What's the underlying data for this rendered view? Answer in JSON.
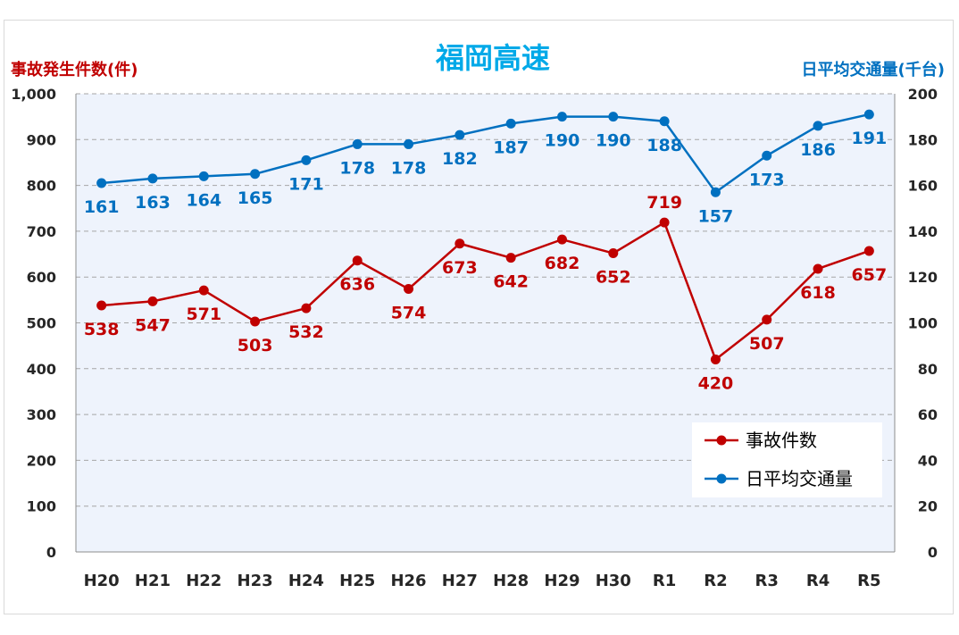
{
  "chart_data": {
    "type": "line",
    "title": "福岡高速",
    "y_left_label": "事故発生件数(件)",
    "y_right_label": "日平均交通量(千台)",
    "categories": [
      "H20",
      "H21",
      "H22",
      "H23",
      "H24",
      "H25",
      "H26",
      "H27",
      "H28",
      "H29",
      "H30",
      "R1",
      "R2",
      "R3",
      "R4",
      "R5"
    ],
    "y_left_lim": [
      0,
      1000
    ],
    "y_left_ticks": [
      "0",
      "100",
      "200",
      "300",
      "400",
      "500",
      "600",
      "700",
      "800",
      "900",
      "1,000"
    ],
    "y_right_lim": [
      0,
      200
    ],
    "y_right_ticks": [
      "0",
      "20",
      "40",
      "60",
      "80",
      "100",
      "120",
      "140",
      "160",
      "180",
      "200"
    ],
    "grid": true,
    "legend_position": "bottom-right",
    "series": [
      {
        "name": "事故件数",
        "axis": "left",
        "color": "#c00000",
        "values": [
          538,
          547,
          571,
          503,
          532,
          636,
          574,
          673,
          642,
          682,
          652,
          719,
          420,
          507,
          618,
          657
        ]
      },
      {
        "name": "日平均交通量",
        "axis": "right",
        "color": "#0070c0",
        "values": [
          161,
          163,
          164,
          165,
          171,
          178,
          178,
          182,
          187,
          190,
          190,
          188,
          157,
          173,
          186,
          191
        ]
      }
    ]
  }
}
